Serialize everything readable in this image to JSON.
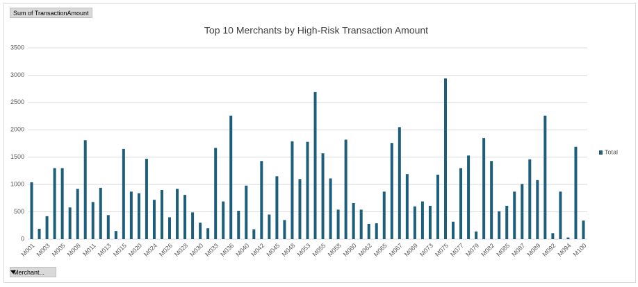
{
  "field_buttons": {
    "value_field": "Sum of TransactionAmount",
    "axis_field": "Merchant..."
  },
  "chart_data": {
    "type": "bar",
    "title": "Top 10 Merchants by High-Risk Transaction Amount",
    "categories": [
      "M001",
      null,
      "M003",
      null,
      "M005",
      null,
      "M008",
      null,
      "M011",
      null,
      "M013",
      null,
      "M015",
      null,
      "M020",
      null,
      "M024",
      null,
      "M026",
      null,
      "M028",
      null,
      "M030",
      null,
      "M033",
      null,
      "M036",
      null,
      "M040",
      null,
      "M042",
      null,
      "M045",
      null,
      "M048",
      null,
      "M053",
      null,
      "M055",
      null,
      "M058",
      null,
      "M060",
      null,
      "M062",
      null,
      "M065",
      null,
      "M067",
      null,
      "M069",
      null,
      "M073",
      null,
      "M075",
      null,
      "M077",
      null,
      "M079",
      null,
      "M082",
      null,
      "M085",
      null,
      "M087",
      null,
      "M089",
      null,
      "M092",
      null,
      "M094",
      null,
      "M100"
    ],
    "series": [
      {
        "name": "Total",
        "color": "#1d5f7a",
        "values": [
          1040,
          190,
          420,
          1300,
          1300,
          580,
          920,
          1810,
          680,
          940,
          440,
          150,
          1650,
          870,
          840,
          1470,
          720,
          900,
          400,
          920,
          810,
          490,
          300,
          200,
          1670,
          690,
          2260,
          520,
          980,
          180,
          1430,
          450,
          1150,
          350,
          1790,
          1100,
          1780,
          2690,
          1570,
          1110,
          540,
          1820,
          660,
          540,
          280,
          290,
          870,
          1760,
          2050,
          1190,
          600,
          690,
          610,
          1180,
          2940,
          320,
          1300,
          1530,
          140,
          1850,
          1430,
          510,
          610,
          870,
          1010,
          1460,
          1080,
          2260,
          110,
          870,
          30,
          1690,
          340
        ]
      }
    ],
    "ylim": [
      0,
      3500
    ],
    "yticks": [
      0,
      500,
      1000,
      1500,
      2000,
      2500,
      3000,
      3500
    ],
    "grid": true,
    "legend": "right"
  }
}
